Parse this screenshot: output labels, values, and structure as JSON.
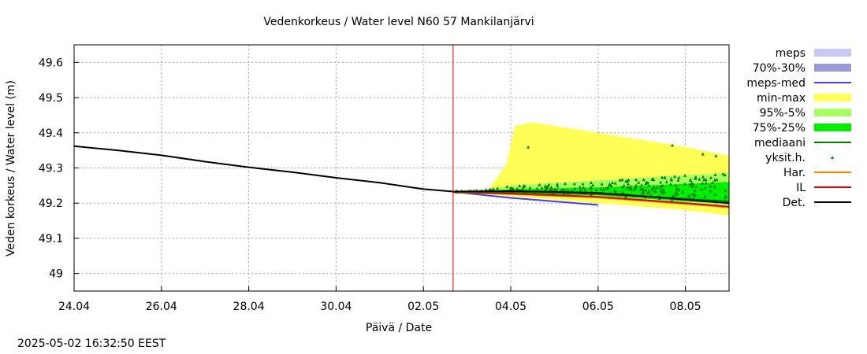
{
  "chart_data": {
    "type": "line",
    "title": "Vedenkorkeus / Water level   N60 57 Mankilanjärvi",
    "xlabel": "Päivä / Date",
    "ylabel": "Veden korkeus / Water level (m)",
    "x_ticks": [
      "24.04",
      "26.04",
      "28.04",
      "30.04",
      "02.05",
      "04.05",
      "06.05",
      "08.05"
    ],
    "y_ticks": [
      "49",
      "49.1",
      "49.2",
      "49.3",
      "49.4",
      "49.5",
      "49.6"
    ],
    "xlim": [
      "2025-04-24",
      "2025-05-09"
    ],
    "ylim": [
      48.95,
      49.65
    ],
    "grid": true,
    "legend_position": "right",
    "forecast_start": "2025-05-02T16:32",
    "colors": {
      "meps": "#c8c8f8",
      "p70_30": "#9a9ad8",
      "meps_med": "#4040e0",
      "min_max": "#ffff55",
      "p95_5": "#a8ff60",
      "p75_25": "#00ee00",
      "mediaani": "#008000",
      "yksit": "#008000",
      "har": "#ff8000",
      "il": "#e00000",
      "det": "#000000",
      "now_line": "#e00000"
    },
    "legend": [
      {
        "label": "meps",
        "key": "meps",
        "kind": "band"
      },
      {
        "label": "70%-30%",
        "key": "p70_30",
        "kind": "band"
      },
      {
        "label": "meps-med",
        "key": "meps_med",
        "kind": "line"
      },
      {
        "label": "min-max",
        "key": "min_max",
        "kind": "band"
      },
      {
        "label": "95%-5%",
        "key": "p95_5",
        "kind": "band"
      },
      {
        "label": "75%-25%",
        "key": "p75_25",
        "kind": "band"
      },
      {
        "label": "mediaani",
        "key": "mediaani",
        "kind": "line"
      },
      {
        "label": "yksit.h.",
        "key": "yksit",
        "kind": "point"
      },
      {
        "label": "Har.",
        "key": "har",
        "kind": "line"
      },
      {
        "label": "IL",
        "key": "il",
        "kind": "line"
      },
      {
        "label": "Det.",
        "key": "det",
        "kind": "line"
      }
    ],
    "series": {
      "observed": {
        "x": [
          0,
          1,
          2,
          3,
          4,
          5,
          6,
          7,
          8,
          8.68
        ],
        "y": [
          49.362,
          49.35,
          49.336,
          49.318,
          49.302,
          49.288,
          49.272,
          49.258,
          49.24,
          49.233
        ]
      },
      "det": {
        "x": [
          8.68,
          10,
          11,
          12,
          13,
          14,
          15
        ],
        "y": [
          49.233,
          49.234,
          49.232,
          49.229,
          49.22,
          49.21,
          49.2
        ]
      },
      "il": {
        "x": [
          8.68,
          10,
          12,
          14,
          15
        ],
        "y": [
          49.232,
          49.227,
          49.218,
          49.2,
          49.19
        ]
      },
      "har": {
        "x": [
          8.68,
          10,
          12,
          14,
          15
        ],
        "y": [
          49.231,
          49.226,
          49.216,
          49.198,
          49.188
        ]
      },
      "mediaani": {
        "x": [
          8.68,
          10,
          12,
          14,
          15
        ],
        "y": [
          49.232,
          49.232,
          49.226,
          49.212,
          49.205
        ]
      },
      "meps_med": {
        "x": [
          8.68,
          10,
          11,
          12
        ],
        "y": [
          49.232,
          49.215,
          49.205,
          49.195
        ]
      },
      "min_max": {
        "x": [
          8.68,
          9.5,
          9.9,
          10.1,
          10.5,
          12,
          14,
          15
        ],
        "upper": [
          49.235,
          49.24,
          49.31,
          49.42,
          49.43,
          49.4,
          49.36,
          49.335
        ],
        "lower": [
          49.232,
          49.225,
          49.22,
          49.22,
          49.215,
          49.2,
          49.18,
          49.165
        ]
      },
      "p95_5": {
        "x": [
          8.68,
          9.5,
          10,
          12,
          14,
          15
        ],
        "upper": [
          49.234,
          49.24,
          49.25,
          49.265,
          49.28,
          49.285
        ],
        "lower": [
          49.231,
          49.228,
          49.225,
          49.215,
          49.195,
          49.185
        ]
      },
      "p75_25": {
        "x": [
          8.68,
          9.5,
          10,
          12,
          14,
          15
        ],
        "upper": [
          49.233,
          49.236,
          49.24,
          49.245,
          49.255,
          49.26
        ],
        "lower": [
          49.231,
          49.23,
          49.228,
          49.222,
          49.205,
          49.198
        ]
      }
    }
  },
  "footer": {
    "timestamp": "2025-05-02 16:32:50 EEST"
  }
}
